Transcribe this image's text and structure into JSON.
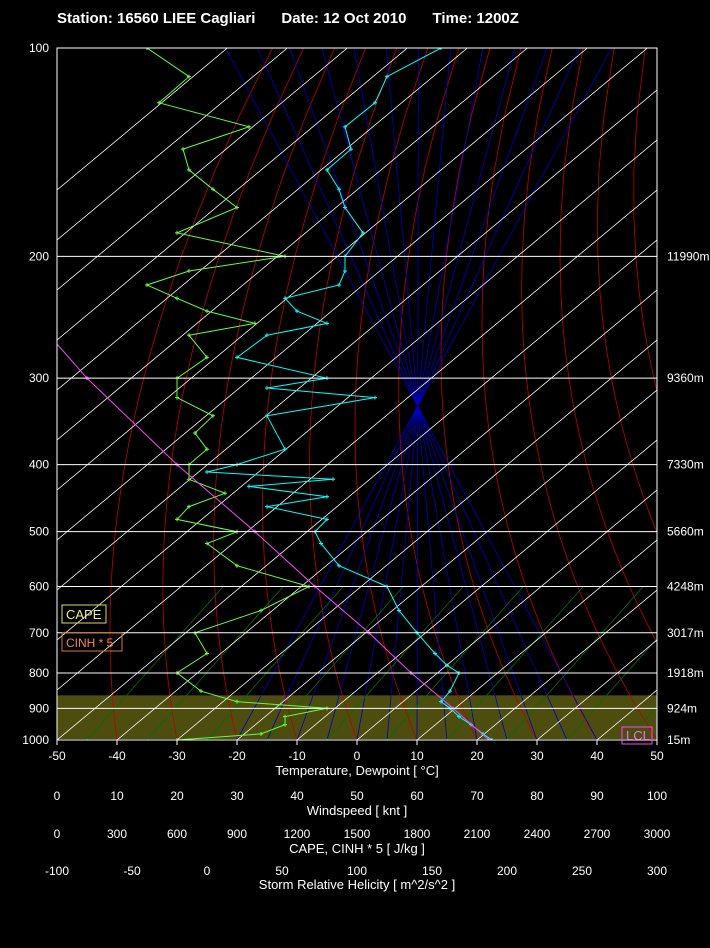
{
  "header": {
    "station": "Station: 16560 LIEE Cagliari",
    "date": "Date: 12 Oct 2010",
    "time": "Time: 1200Z"
  },
  "chart_data": {
    "type": "line",
    "subtype": "skew-T log-P sounding",
    "colors": {
      "background": "#000000",
      "grid": "#ffffff",
      "isotherm_skew": "#ffffff",
      "dry_adiabat": "#c00000",
      "moist_adiabat": "#0000c0",
      "mixing_ratio": "#007000",
      "temperature": "#00ffff",
      "dewpoint": "#66ff33",
      "humidity_trace": "#ff3399",
      "wind_trace": "#ff3333",
      "parcel": "#ff44ff",
      "positive_area": "#008000",
      "cape_layer": "#555511",
      "hodo": "#ffff00"
    },
    "pressure_levels": [
      100,
      200,
      300,
      400,
      500,
      600,
      700,
      800,
      900,
      1000
    ],
    "height_labels": [
      {
        "p": 200,
        "label": "11990m"
      },
      {
        "p": 300,
        "label": "9360m"
      },
      {
        "p": 400,
        "label": "7330m"
      },
      {
        "p": 500,
        "label": "5660m"
      },
      {
        "p": 600,
        "label": "4248m"
      },
      {
        "p": 700,
        "label": "3017m"
      },
      {
        "p": 800,
        "label": "1918m"
      },
      {
        "p": 900,
        "label": "924m"
      },
      {
        "p": 1000,
        "label": "15m"
      }
    ],
    "axes": [
      {
        "ticks": [
          "-50",
          "-40",
          "-30",
          "-20",
          "-10",
          "0",
          "10",
          "20",
          "30",
          "40",
          "50"
        ],
        "label": "Temperature, Dewpoint  [ °C]"
      },
      {
        "ticks": [
          "0",
          "10",
          "20",
          "30",
          "40",
          "50",
          "60",
          "70",
          "80",
          "90",
          "100"
        ],
        "label": "Windspeed  [ knt ]"
      },
      {
        "ticks": [
          "0",
          "300",
          "600",
          "900",
          "1200",
          "1500",
          "1800",
          "2100",
          "2400",
          "2700",
          "3000"
        ],
        "label": "CAPE, CINH * 5  [ J/kg ]"
      },
      {
        "ticks": [
          "-100",
          "-50",
          "0",
          "50",
          "100",
          "150",
          "200",
          "250",
          "300"
        ],
        "label": "Storm Relative Helicity  [ m^2/s^2 ]"
      }
    ],
    "legend": {
      "cape": "CAPE",
      "cinh": "CINH * 5",
      "lcl": "LCL"
    },
    "series": [
      {
        "key": "temperature",
        "points": [
          [
            1000,
            22.5
          ],
          [
            980,
            21
          ],
          [
            950,
            19
          ],
          [
            925,
            17
          ],
          [
            900,
            15.5
          ],
          [
            880,
            14
          ],
          [
            850,
            15.5
          ],
          [
            800,
            17
          ],
          [
            780,
            15
          ],
          [
            750,
            13
          ],
          [
            700,
            10
          ],
          [
            650,
            7
          ],
          [
            600,
            5
          ],
          [
            560,
            -3
          ],
          [
            520,
            -6
          ],
          [
            500,
            -7
          ],
          [
            480,
            -5
          ],
          [
            460,
            -15
          ],
          [
            445,
            -5
          ],
          [
            430,
            -18
          ],
          [
            420,
            -4
          ],
          [
            410,
            -25
          ],
          [
            400,
            -20
          ],
          [
            380,
            -12
          ],
          [
            340,
            -15
          ],
          [
            320,
            3
          ],
          [
            310,
            -15
          ],
          [
            300,
            -5
          ],
          [
            280,
            -20
          ],
          [
            260,
            -15
          ],
          [
            250,
            -5
          ],
          [
            240,
            -10
          ],
          [
            230,
            -12
          ],
          [
            220,
            -3
          ],
          [
            210,
            -2
          ],
          [
            200,
            -2
          ],
          [
            185,
            1
          ],
          [
            170,
            -2
          ],
          [
            160,
            -3
          ],
          [
            150,
            -5
          ],
          [
            140,
            -1
          ],
          [
            130,
            -2
          ],
          [
            120,
            3
          ],
          [
            110,
            5
          ],
          [
            100,
            14
          ]
        ]
      },
      {
        "key": "dewpoint",
        "points": [
          [
            1000,
            -30
          ],
          [
            980,
            -16
          ],
          [
            950,
            -12
          ],
          [
            925,
            -12
          ],
          [
            900,
            -5
          ],
          [
            880,
            -20
          ],
          [
            850,
            -26
          ],
          [
            800,
            -30
          ],
          [
            750,
            -25
          ],
          [
            700,
            -27
          ],
          [
            650,
            -16
          ],
          [
            600,
            -8
          ],
          [
            560,
            -20
          ],
          [
            520,
            -25
          ],
          [
            500,
            -20
          ],
          [
            480,
            -30
          ],
          [
            460,
            -28
          ],
          [
            440,
            -22
          ],
          [
            420,
            -28
          ],
          [
            400,
            -28
          ],
          [
            380,
            -25
          ],
          [
            360,
            -27
          ],
          [
            340,
            -24
          ],
          [
            320,
            -30
          ],
          [
            300,
            -30
          ],
          [
            280,
            -25
          ],
          [
            260,
            -28
          ],
          [
            250,
            -17
          ],
          [
            240,
            -25
          ],
          [
            230,
            -30
          ],
          [
            220,
            -35
          ],
          [
            210,
            -28
          ],
          [
            200,
            -12
          ],
          [
            185,
            -30
          ],
          [
            170,
            -20
          ],
          [
            160,
            -24
          ],
          [
            150,
            -28
          ],
          [
            140,
            -29
          ],
          [
            130,
            -18
          ],
          [
            120,
            -33
          ],
          [
            110,
            -28
          ],
          [
            100,
            -35
          ]
        ]
      },
      {
        "key": "parcel",
        "points": [
          [
            1000,
            22
          ],
          [
            900,
            16
          ],
          [
            800,
            9
          ],
          [
            700,
            2
          ],
          [
            600,
            -7
          ],
          [
            500,
            -17
          ],
          [
            400,
            -30
          ],
          [
            300,
            -45
          ],
          [
            250,
            -53
          ],
          [
            200,
            -63
          ],
          [
            150,
            -73
          ],
          [
            100,
            -85
          ]
        ]
      }
    ],
    "xlim": [
      -50,
      50
    ],
    "ylim": [
      1000,
      100
    ],
    "yscale": "log"
  }
}
